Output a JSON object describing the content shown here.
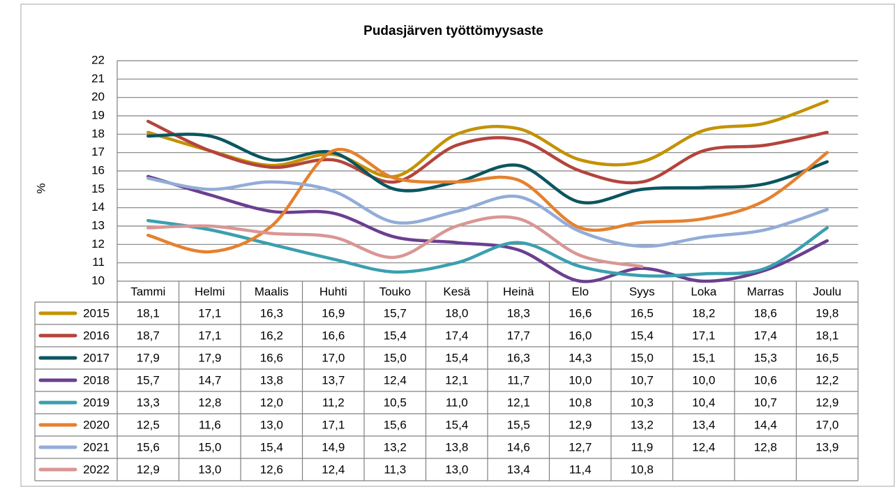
{
  "chart_data": {
    "type": "line",
    "title": "Pudasjärven työttömyysaste",
    "y_label": "%",
    "categories": [
      "Tammi",
      "Helmi",
      "Maalis",
      "Huhti",
      "Touko",
      "Kesä",
      "Heinä",
      "Elo",
      "Syys",
      "Loka",
      "Marras",
      "Joulu"
    ],
    "ylim": [
      10,
      22
    ],
    "yticks": [
      10,
      11,
      12,
      13,
      14,
      15,
      16,
      17,
      18,
      19,
      20,
      21,
      22
    ],
    "grid": true,
    "series": [
      {
        "name": "2015",
        "color": "#c39200",
        "values": [
          18.1,
          17.1,
          16.3,
          16.9,
          15.7,
          18.0,
          18.3,
          16.6,
          16.5,
          18.2,
          18.6,
          19.8
        ],
        "value_labels": [
          "18,1",
          "17,1",
          "16,3",
          "16,9",
          "15,7",
          "18,0",
          "18,3",
          "16,6",
          "16,5",
          "18,2",
          "18,6",
          "19,8"
        ]
      },
      {
        "name": "2016",
        "color": "#b4443c",
        "values": [
          18.7,
          17.1,
          16.2,
          16.6,
          15.4,
          17.4,
          17.7,
          16.0,
          15.4,
          17.1,
          17.4,
          18.1
        ],
        "value_labels": [
          "18,7",
          "17,1",
          "16,2",
          "16,6",
          "15,4",
          "17,4",
          "17,7",
          "16,0",
          "15,4",
          "17,1",
          "17,4",
          "18,1"
        ]
      },
      {
        "name": "2017",
        "color": "#0b5560",
        "values": [
          17.9,
          17.9,
          16.6,
          17.0,
          15.0,
          15.4,
          16.3,
          14.3,
          15.0,
          15.1,
          15.3,
          16.5
        ],
        "value_labels": [
          "17,9",
          "17,9",
          "16,6",
          "17,0",
          "15,0",
          "15,4",
          "16,3",
          "14,3",
          "15,0",
          "15,1",
          "15,3",
          "16,5"
        ]
      },
      {
        "name": "2018",
        "color": "#6b3f8f",
        "values": [
          15.7,
          14.7,
          13.8,
          13.7,
          12.4,
          12.1,
          11.7,
          10.0,
          10.7,
          10.0,
          10.6,
          12.2
        ],
        "value_labels": [
          "15,7",
          "14,7",
          "13,8",
          "13,7",
          "12,4",
          "12,1",
          "11,7",
          "10,0",
          "10,7",
          "10,0",
          "10,6",
          "12,2"
        ]
      },
      {
        "name": "2019",
        "color": "#3a9fb0",
        "values": [
          13.3,
          12.8,
          12.0,
          11.2,
          10.5,
          11.0,
          12.1,
          10.8,
          10.3,
          10.4,
          10.7,
          12.9
        ],
        "value_labels": [
          "13,3",
          "12,8",
          "12,0",
          "11,2",
          "10,5",
          "11,0",
          "12,1",
          "10,8",
          "10,3",
          "10,4",
          "10,7",
          "12,9"
        ]
      },
      {
        "name": "2020",
        "color": "#e5812f",
        "values": [
          12.5,
          11.6,
          13.0,
          17.1,
          15.6,
          15.4,
          15.5,
          12.9,
          13.2,
          13.4,
          14.4,
          17.0
        ],
        "value_labels": [
          "12,5",
          "11,6",
          "13,0",
          "17,1",
          "15,6",
          "15,4",
          "15,5",
          "12,9",
          "13,2",
          "13,4",
          "14,4",
          "17,0"
        ]
      },
      {
        "name": "2021",
        "color": "#93acd8",
        "values": [
          15.6,
          15.0,
          15.4,
          14.9,
          13.2,
          13.8,
          14.6,
          12.7,
          11.9,
          12.4,
          12.8,
          13.9
        ],
        "value_labels": [
          "15,6",
          "15,0",
          "15,4",
          "14,9",
          "13,2",
          "13,8",
          "14,6",
          "12,7",
          "11,9",
          "12,4",
          "12,8",
          "13,9"
        ]
      },
      {
        "name": "2022",
        "color": "#d99695",
        "values": [
          12.9,
          13.0,
          12.6,
          12.4,
          11.3,
          13.0,
          13.4,
          11.4,
          10.8,
          null,
          null,
          null
        ],
        "value_labels": [
          "12,9",
          "13,0",
          "12,6",
          "12,4",
          "11,3",
          "13,0",
          "13,4",
          "11,4",
          "10,8",
          null,
          null,
          null
        ]
      }
    ]
  }
}
